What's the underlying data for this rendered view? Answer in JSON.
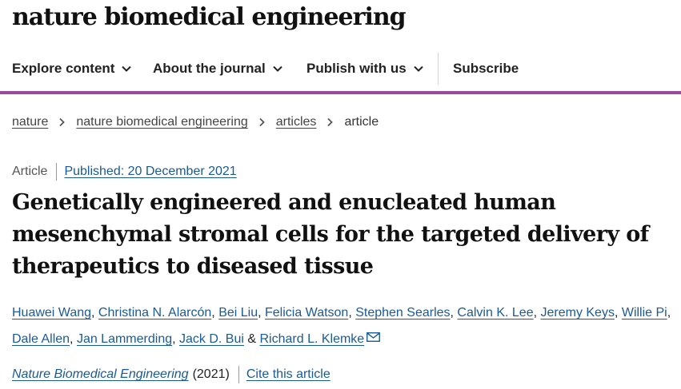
{
  "header": {
    "logo": "nature biomedical engineering"
  },
  "nav": {
    "items": [
      {
        "label": "Explore content"
      },
      {
        "label": "About the journal"
      },
      {
        "label": "Publish with us"
      }
    ],
    "subscribe": "Subscribe"
  },
  "breadcrumb": {
    "items": [
      "nature",
      "nature biomedical engineering",
      "articles"
    ],
    "current": "article"
  },
  "article": {
    "type": "Article",
    "published": "Published: 20 December 2021",
    "title": "Genetically engineered and enucleated human mesenchymal stromal cells for the targeted delivery of therapeutics to diseased tissue",
    "authors": [
      "Huawei Wang",
      "Christina N. Alarcón",
      "Bei Liu",
      "Felicia Watson",
      "Stephen Searles",
      "Calvin K. Lee",
      "Jeremy Keys",
      "Willie Pi",
      "Dale Allen",
      "Jan Lammerding",
      "Jack D. Bui",
      "Richard L. Klemke"
    ],
    "author_sep": ", ",
    "author_last_sep": " & ",
    "journal": "Nature Biomedical Engineering",
    "year": "(2021)",
    "cite": "Cite this article"
  },
  "icons": {
    "nav_dropdown": "chevron-down-icon",
    "breadcrumb_separator": "chevron-right-icon",
    "corresponding_author": "mail-icon"
  },
  "colors": {
    "accent_bar": "#9c4a9a",
    "link": "#1a5a96"
  }
}
